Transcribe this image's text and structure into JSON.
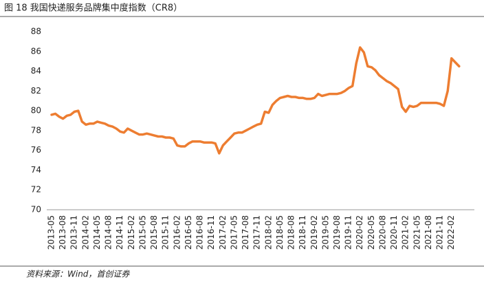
{
  "chart_data": {
    "type": "line",
    "title": "图 18 我国快递服务品牌集中度指数（CR8）",
    "source": "资料来源：Wind，首创证券",
    "color": "#ed7d31",
    "ylim": [
      70,
      88
    ],
    "yticks": [
      70,
      72,
      74,
      76,
      78,
      80,
      82,
      84,
      86,
      88
    ],
    "grid": false,
    "categories": [
      "2013-05",
      null,
      null,
      "2013-08",
      null,
      null,
      "2013-11",
      null,
      null,
      "2014-02",
      null,
      null,
      "2014-05",
      null,
      null,
      "2014-08",
      null,
      null,
      "2014-11",
      null,
      null,
      "2015-02",
      null,
      null,
      "2015-05",
      null,
      null,
      "2015-08",
      null,
      null,
      "2015-11",
      null,
      null,
      "2016-02",
      null,
      null,
      "2016-05",
      null,
      null,
      "2016-08",
      null,
      null,
      "2016-11",
      null,
      null,
      "2017-02",
      null,
      null,
      "2017-05",
      null,
      null,
      "2017-08",
      null,
      null,
      "2017-11",
      null,
      null,
      "2018-02",
      null,
      null,
      "2018-05",
      null,
      null,
      "2018-08",
      null,
      null,
      "2018-11",
      null,
      null,
      "2019-02",
      null,
      null,
      "2019-05",
      null,
      null,
      "2019-08",
      null,
      null,
      "2019-11",
      null,
      null,
      "2020-02",
      null,
      null,
      "2020-05",
      null,
      null,
      "2020-08",
      null,
      null,
      "2020-11",
      null,
      null,
      "2021-02",
      null,
      null,
      "2021-05",
      null,
      null,
      "2021-08",
      null,
      null,
      "2021-11",
      null,
      null,
      "2022-02",
      null,
      null
    ],
    "values": [
      79.6,
      79.7,
      79.4,
      79.2,
      79.5,
      79.6,
      79.9,
      80.0,
      78.9,
      78.6,
      78.7,
      78.7,
      78.9,
      78.8,
      78.7,
      78.5,
      78.4,
      78.2,
      77.9,
      77.8,
      78.2,
      78.0,
      77.8,
      77.6,
      77.6,
      77.7,
      77.6,
      77.5,
      77.4,
      77.4,
      77.3,
      77.3,
      77.2,
      76.5,
      76.4,
      76.4,
      76.7,
      76.9,
      76.9,
      76.9,
      76.8,
      76.8,
      76.8,
      76.7,
      75.7,
      76.5,
      76.9,
      77.3,
      77.7,
      77.8,
      77.8,
      78.0,
      78.2,
      78.4,
      78.6,
      78.7,
      79.9,
      79.8,
      80.6,
      81.0,
      81.3,
      81.4,
      81.5,
      81.4,
      81.4,
      81.3,
      81.3,
      81.2,
      81.2,
      81.3,
      81.7,
      81.5,
      81.6,
      81.7,
      81.7,
      81.7,
      81.8,
      82.0,
      82.3,
      82.5,
      84.8,
      86.4,
      85.9,
      84.5,
      84.4,
      84.1,
      83.6,
      83.3,
      83.0,
      82.8,
      82.5,
      82.2,
      80.4,
      79.9,
      80.5,
      80.4,
      80.5,
      80.8,
      80.8,
      80.8,
      80.8,
      80.8,
      80.7,
      80.5,
      82.0,
      85.3,
      84.9,
      84.5
    ]
  }
}
